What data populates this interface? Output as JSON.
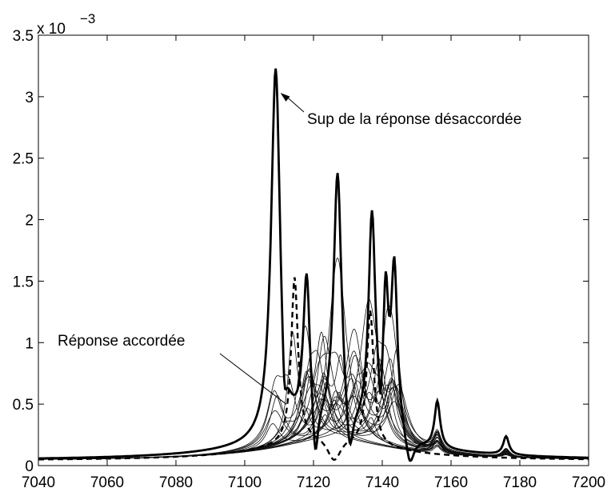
{
  "chart_data": {
    "type": "line",
    "title": "",
    "xlabel": "",
    "ylabel": "",
    "xlim": [
      7040,
      7200
    ],
    "ylim": [
      0,
      3.5
    ],
    "y_exponent_label": "x 10",
    "y_exponent_power": "−3",
    "xticks": [
      7040,
      7060,
      7080,
      7100,
      7120,
      7140,
      7160,
      7180,
      7200
    ],
    "xtick_labels": [
      "7040",
      "7060",
      "7080",
      "7100",
      "7120",
      "7140",
      "7160",
      "7180",
      "7200"
    ],
    "yticks": [
      0,
      0.5,
      1,
      1.5,
      2,
      2.5,
      3,
      3.5
    ],
    "ytick_labels": [
      "0",
      "0.5",
      "1",
      "1.5",
      "2",
      "2.5",
      "3",
      "3.5"
    ],
    "grid": false,
    "annotations": [
      {
        "text": "Sup de la réponse désaccordée",
        "points_to": [
          7109,
          3.05
        ]
      },
      {
        "text": "Réponse accordée",
        "points_to": [
          7114,
          0.55
        ]
      }
    ],
    "series_envelope": {
      "style": "thick",
      "peaks": [
        {
          "x": 7109,
          "y": 3.05,
          "w": 1.6
        },
        {
          "x": 7118,
          "y": 1.25,
          "w": 1.2
        },
        {
          "x": 7127,
          "y": 2.1,
          "w": 1.4
        },
        {
          "x": 7137,
          "y": 1.75,
          "w": 1.2
        },
        {
          "x": 7141,
          "y": 1.05,
          "w": 0.9
        },
        {
          "x": 7143.5,
          "y": 1.35,
          "w": 1.1
        },
        {
          "x": 7156,
          "y": 0.38,
          "w": 1.0
        },
        {
          "x": 7176,
          "y": 0.15,
          "w": 1.0
        }
      ],
      "dips": [
        {
          "x": 7111.5,
          "depth": 0.45,
          "w": 0.8
        },
        {
          "x": 7120.5,
          "depth": 0.5,
          "w": 1.0
        },
        {
          "x": 7130.5,
          "depth": 0.45,
          "w": 1.2
        },
        {
          "x": 7139.5,
          "depth": 0.35,
          "w": 0.6
        },
        {
          "x": 7148,
          "depth": 0.25,
          "w": 1.5
        }
      ],
      "baseline": 0.04
    },
    "series_tuned": {
      "style": "dashed-thick",
      "peaks": [
        {
          "x": 7114.5,
          "y": 1.35,
          "w": 1.2
        },
        {
          "x": 7136.5,
          "y": 1.1,
          "w": 1.2
        }
      ],
      "baseline": 0.04
    },
    "series_family": {
      "style": "thin",
      "count": 24,
      "baseline": 0.04,
      "region": [
        7106,
        7146
      ],
      "peak_range": [
        0.35,
        2.25
      ]
    }
  }
}
